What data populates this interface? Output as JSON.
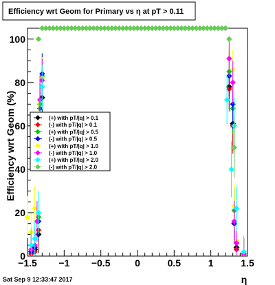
{
  "chart_data": {
    "type": "scatter",
    "title": "Efficiency wrt Geom for Primary vs   η at pT > 0.11",
    "xlabel": "η",
    "ylabel": "Efficiency wrt Geom (%)",
    "xlim": [
      -1.5,
      1.5
    ],
    "ylim": [
      0,
      105
    ],
    "xticks": [
      -1.5,
      -1,
      -0.5,
      0,
      0.5,
      1,
      1.5
    ],
    "xtick_labels": [
      "−1.5",
      "−1",
      "−0.5",
      "0",
      "0.5",
      "1",
      "1.5"
    ],
    "yticks": [
      0,
      20,
      40,
      60,
      80,
      100
    ],
    "ytick_labels": [
      "0",
      "20",
      "40",
      "60",
      "80",
      "100"
    ],
    "grid": false,
    "legend_position": "center-left",
    "timestamp": "Sat Sep  9 12:33:47 2017",
    "series": [
      {
        "name": "(+) with pT/|q| > 0.1",
        "color": "#000000",
        "marker": "diamond",
        "points": [
          [
            -1.45,
            2
          ],
          [
            -1.4,
            3
          ],
          [
            -1.35,
            10
          ],
          [
            -1.33,
            64
          ],
          [
            -1.3,
            73
          ],
          [
            1.25,
            78
          ],
          [
            1.3,
            61
          ],
          [
            1.32,
            15
          ],
          [
            1.35,
            4
          ],
          [
            1.45,
            1
          ]
        ]
      },
      {
        "name": "(-) with pT/|q| > 0.1",
        "color": "#ff0000",
        "marker": "diamond",
        "points": [
          [
            -1.45,
            1
          ],
          [
            -1.4,
            2
          ],
          [
            -1.35,
            12
          ],
          [
            -1.33,
            63
          ],
          [
            -1.3,
            78
          ],
          [
            1.25,
            77
          ],
          [
            1.3,
            60
          ],
          [
            1.32,
            16
          ],
          [
            1.35,
            3
          ],
          [
            1.45,
            1
          ]
        ]
      },
      {
        "name": "(+) with pT/|q| > 0.5",
        "color": "#00cc00",
        "marker": "diamond",
        "points": [
          [
            -1.45,
            2
          ],
          [
            -1.4,
            4
          ],
          [
            -1.35,
            18
          ],
          [
            -1.33,
            70
          ],
          [
            -1.3,
            83
          ],
          [
            1.25,
            85
          ],
          [
            1.3,
            68
          ],
          [
            1.32,
            21
          ],
          [
            1.35,
            6
          ],
          [
            1.45,
            1
          ]
        ]
      },
      {
        "name": "(-) with pT/|q| > 0.5",
        "color": "#0000ff",
        "marker": "diamond",
        "points": [
          [
            -1.45,
            2
          ],
          [
            -1.4,
            4
          ],
          [
            -1.35,
            16
          ],
          [
            -1.33,
            68
          ],
          [
            -1.3,
            84
          ],
          [
            1.25,
            83
          ],
          [
            1.3,
            70
          ],
          [
            1.32,
            15
          ],
          [
            1.35,
            6
          ],
          [
            1.45,
            1
          ]
        ]
      },
      {
        "name": "(+) with pT/|q| > 1.0",
        "color": "#ffff00",
        "marker": "diamond",
        "points": [
          [
            -1.5,
            18
          ],
          [
            -1.45,
            11
          ],
          [
            -1.4,
            22
          ],
          [
            -1.35,
            60
          ],
          [
            -1.3,
            82
          ],
          [
            1.25,
            91
          ],
          [
            1.3,
            86
          ],
          [
            1.32,
            23
          ],
          [
            1.35,
            7
          ],
          [
            1.45,
            1
          ]
        ]
      },
      {
        "name": "(-) with pT/|q| > 1.0",
        "color": "#ff00ff",
        "marker": "diamond",
        "points": [
          [
            -1.45,
            3
          ],
          [
            -1.4,
            5
          ],
          [
            -1.37,
            16
          ],
          [
            -1.33,
            72
          ],
          [
            -1.3,
            81
          ],
          [
            1.25,
            91
          ],
          [
            1.3,
            80
          ],
          [
            1.32,
            16
          ],
          [
            1.35,
            6
          ],
          [
            1.45,
            1
          ]
        ]
      },
      {
        "name": "(+) with pT/|q| > 2.0",
        "color": "#00ffff",
        "marker": "diamond",
        "points": [
          [
            -1.45,
            5
          ],
          [
            -1.4,
            8
          ],
          [
            -1.35,
            20
          ],
          [
            -1.33,
            60
          ],
          [
            -1.3,
            78
          ],
          [
            1.22,
            72
          ],
          [
            1.28,
            40
          ],
          [
            1.32,
            60
          ],
          [
            1.35,
            22
          ],
          [
            1.45,
            2
          ]
        ]
      },
      {
        "name": "(-) with pT/|q| > 2.0",
        "color": "#66cc55",
        "marker": "diamond",
        "points": [
          [
            -1.3,
            105
          ],
          [
            -1.25,
            105
          ],
          [
            -1.2,
            105
          ],
          [
            -1.15,
            105
          ],
          [
            -1.1,
            105
          ],
          [
            -1.05,
            105
          ],
          [
            -1.0,
            105
          ],
          [
            -0.95,
            105
          ],
          [
            -0.9,
            105
          ],
          [
            -0.85,
            105
          ],
          [
            -0.8,
            105
          ],
          [
            -0.75,
            105
          ],
          [
            -0.7,
            105
          ],
          [
            -0.65,
            105
          ],
          [
            -0.6,
            105
          ],
          [
            -0.55,
            105
          ],
          [
            -0.5,
            105
          ],
          [
            -0.45,
            105
          ],
          [
            -0.4,
            105
          ],
          [
            -0.35,
            105
          ],
          [
            -0.3,
            105
          ],
          [
            -0.25,
            105
          ],
          [
            -0.2,
            105
          ],
          [
            -0.15,
            105
          ],
          [
            -0.1,
            105
          ],
          [
            -0.05,
            105
          ],
          [
            0.0,
            105
          ],
          [
            0.05,
            105
          ],
          [
            0.1,
            105
          ],
          [
            0.15,
            105
          ],
          [
            0.2,
            105
          ],
          [
            0.25,
            105
          ],
          [
            0.3,
            105
          ],
          [
            0.35,
            105
          ],
          [
            0.4,
            105
          ],
          [
            0.45,
            105
          ],
          [
            0.5,
            105
          ],
          [
            0.55,
            105
          ],
          [
            0.6,
            105
          ],
          [
            0.65,
            105
          ],
          [
            0.7,
            105
          ],
          [
            0.75,
            105
          ],
          [
            0.8,
            105
          ],
          [
            0.85,
            105
          ],
          [
            0.9,
            105
          ],
          [
            0.95,
            105
          ],
          [
            1.0,
            105
          ],
          [
            1.05,
            105
          ],
          [
            1.1,
            105
          ],
          [
            1.15,
            105
          ],
          [
            1.2,
            105
          ],
          [
            1.25,
            100
          ],
          [
            -1.35,
            100
          ],
          [
            1.32,
            50
          ]
        ]
      }
    ]
  }
}
